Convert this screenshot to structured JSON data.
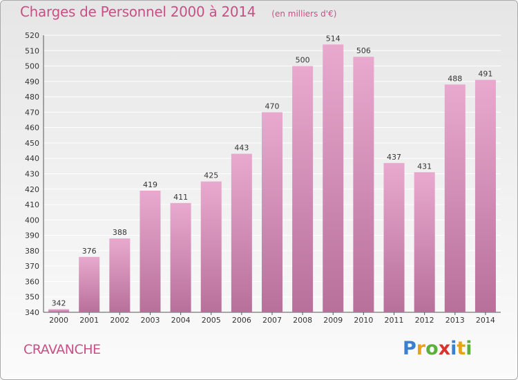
{
  "header": {
    "title": "Charges de Personnel 2000 à 2014",
    "subtitle": "(en milliers d'€)"
  },
  "footer": {
    "commune": "CRAVANCHE",
    "logo_letters": [
      "P",
      "r",
      "o",
      "x",
      "i",
      "t",
      "i"
    ],
    "logo_colors": [
      "#3a7fd0",
      "#e8a21a",
      "#5ab03a",
      "#d8342c",
      "#3a7fd0",
      "#e8a21a",
      "#5ab03a"
    ]
  },
  "colors": {
    "bar_top": "#e9a9cf",
    "bar_bottom": "#b7709a",
    "title": "#c94f86",
    "grid": "#ffffff"
  },
  "chart_data": {
    "type": "bar",
    "title": "Charges de Personnel 2000 à 2014",
    "subtitle": "(en milliers d'€)",
    "categories": [
      "2000",
      "2001",
      "2002",
      "2003",
      "2004",
      "2005",
      "2006",
      "2007",
      "2008",
      "2009",
      "2010",
      "2011",
      "2012",
      "2013",
      "2014"
    ],
    "values": [
      342,
      376,
      388,
      419,
      411,
      425,
      443,
      470,
      500,
      514,
      506,
      437,
      431,
      488,
      491
    ],
    "ylim": [
      340,
      520
    ],
    "ytick_step": 10,
    "grid": true,
    "xlabel": "",
    "ylabel": ""
  }
}
